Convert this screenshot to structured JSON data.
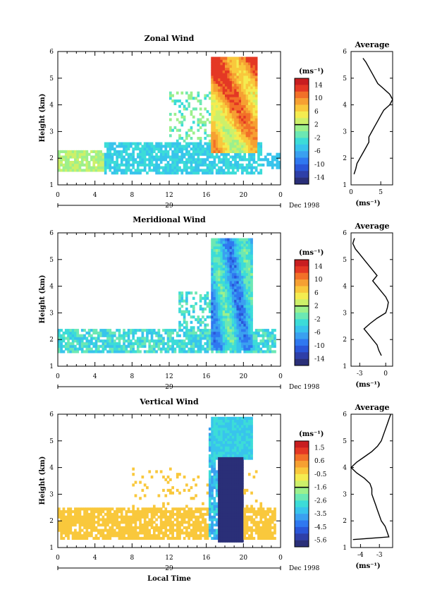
{
  "panels": [
    {
      "title": "Zonal Wind",
      "ylabel": "Height (km)",
      "yticks": [
        "1",
        "2",
        "3",
        "4",
        "5",
        "6"
      ],
      "xticks": [
        "0",
        "4",
        "8",
        "12",
        "16",
        "20",
        "0"
      ],
      "day": "29",
      "month_label": "Dec 1998",
      "cbar_unit": "(ms⁻¹)",
      "cbar_labels": [
        "14",
        "10",
        "6",
        "2",
        "-2",
        "-6",
        "-10",
        "-14"
      ],
      "avg_title": "Average",
      "avg_xticks": [
        "0",
        "5"
      ],
      "avg_xlabel": "(ms⁻¹)"
    },
    {
      "title": "Meridional Wind",
      "ylabel": "Height (km)",
      "yticks": [
        "1",
        "2",
        "3",
        "4",
        "5",
        "6"
      ],
      "xticks": [
        "0",
        "4",
        "8",
        "12",
        "16",
        "20",
        "0"
      ],
      "day": "29",
      "month_label": "Dec 1998",
      "cbar_unit": "(ms⁻¹)",
      "cbar_labels": [
        "14",
        "10",
        "6",
        "2",
        "-2",
        "-6",
        "-10",
        "-14"
      ],
      "avg_title": "Average",
      "avg_xticks": [
        "-3",
        "0"
      ],
      "avg_xlabel": "(ms⁻¹)"
    },
    {
      "title": "Vertical Wind",
      "ylabel": "Height (km)",
      "yticks": [
        "1",
        "2",
        "3",
        "4",
        "5",
        "6"
      ],
      "xticks": [
        "0",
        "4",
        "8",
        "12",
        "16",
        "20",
        "0"
      ],
      "day": "29",
      "month_label": "Dec 1998",
      "cbar_unit": "(ms⁻¹)",
      "cbar_labels": [
        "1.5",
        "0.6",
        "-0.5",
        "-1.6",
        "-2.6",
        "-3.5",
        "-4.5",
        "-5.6"
      ],
      "avg_title": "Average",
      "avg_xticks": [
        "-4",
        "-3"
      ],
      "avg_xlabel": "(ms⁻¹)",
      "xlabel": "Local Time"
    }
  ],
  "palette": [
    "#2a2f78",
    "#2e3fa8",
    "#2a56d8",
    "#2f78f0",
    "#3aa0f0",
    "#38c4ec",
    "#3cdcd8",
    "#6ce8b4",
    "#9cf08c",
    "#cdf06a",
    "#f4ec50",
    "#f9c83c",
    "#f6a032",
    "#f27028",
    "#e43824",
    "#c81e20"
  ],
  "chart_data": [
    {
      "type": "heatmap",
      "title": "Zonal Wind",
      "xlabel": "",
      "ylabel": "Height (km)",
      "xlim": [
        0,
        24
      ],
      "ylim": [
        1,
        6
      ],
      "colorbar": {
        "unit": "ms-1",
        "range": [
          -14,
          14
        ]
      },
      "average_profile": {
        "title": "Average",
        "xlim": [
          0,
          7
        ],
        "height": [
          1.4,
          1.6,
          1.8,
          2.0,
          2.2,
          2.4,
          2.6,
          2.8,
          3.0,
          3.2,
          3.4,
          3.6,
          3.8,
          4.0,
          4.2,
          4.4,
          4.6,
          4.8,
          5.0,
          5.2,
          5.4,
          5.6,
          5.75
        ],
        "value": [
          0.5,
          0.8,
          1.0,
          1.5,
          2.0,
          2.5,
          3.0,
          3.0,
          3.5,
          4.0,
          4.5,
          5.0,
          5.5,
          6.5,
          7.0,
          6.5,
          5.5,
          4.5,
          4.0,
          3.5,
          3.0,
          2.5,
          2.0
        ]
      }
    },
    {
      "type": "heatmap",
      "title": "Meridional Wind",
      "xlabel": "",
      "ylabel": "Height (km)",
      "xlim": [
        0,
        24
      ],
      "ylim": [
        1,
        6
      ],
      "colorbar": {
        "unit": "ms-1",
        "range": [
          -14,
          14
        ]
      },
      "average_profile": {
        "title": "Average",
        "xlim": [
          -4,
          0.8
        ],
        "height": [
          1.4,
          1.6,
          1.8,
          2.0,
          2.2,
          2.4,
          2.6,
          2.8,
          3.0,
          3.2,
          3.4,
          3.6,
          3.8,
          4.0,
          4.2,
          4.4,
          4.6,
          4.8,
          5.0,
          5.2,
          5.4,
          5.6,
          5.8
        ],
        "value": [
          -0.5,
          -0.8,
          -1.0,
          -1.5,
          -2.0,
          -2.5,
          -1.8,
          -1.0,
          0.0,
          0.2,
          0.3,
          0.0,
          -0.5,
          -1.0,
          -1.5,
          -1.0,
          -1.5,
          -2.0,
          -2.5,
          -3.0,
          -3.5,
          -3.8,
          -3.6
        ]
      }
    },
    {
      "type": "heatmap",
      "title": "Vertical Wind",
      "xlabel": "Local Time",
      "ylabel": "Height (km)",
      "xlim": [
        0,
        24
      ],
      "ylim": [
        1,
        6
      ],
      "colorbar": {
        "unit": "ms-1",
        "range": [
          -5.6,
          1.5
        ]
      },
      "average_profile": {
        "title": "Average",
        "xlim": [
          -4.5,
          -2.3
        ],
        "height": [
          1.3,
          1.4,
          1.6,
          1.8,
          2.0,
          2.2,
          2.4,
          2.6,
          2.8,
          3.0,
          3.2,
          3.4,
          3.6,
          3.8,
          4.0,
          4.2,
          4.4,
          4.6,
          4.8,
          5.0,
          5.2,
          5.4,
          5.6,
          5.8,
          6.0
        ],
        "value": [
          -4.4,
          -2.5,
          -2.6,
          -2.7,
          -2.9,
          -3.0,
          -3.1,
          -3.2,
          -3.3,
          -3.4,
          -3.4,
          -3.5,
          -3.8,
          -4.2,
          -4.5,
          -4.2,
          -3.8,
          -3.4,
          -3.1,
          -2.9,
          -2.8,
          -2.7,
          -2.6,
          -2.5,
          -2.4
        ]
      }
    }
  ]
}
